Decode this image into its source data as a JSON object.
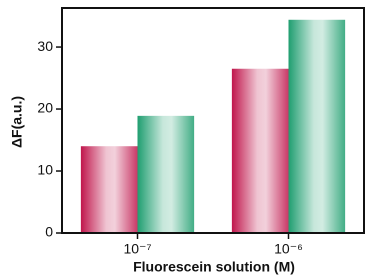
{
  "chart_data": {
    "type": "bar",
    "x_label": "Fluorescein solution (M)",
    "y_label": "ΔF(a.u.)",
    "categories": [
      "10⁻⁷",
      "10⁻⁶"
    ],
    "series": [
      {
        "color": "#c0164c",
        "values": [
          14.0,
          26.5
        ]
      },
      {
        "color": "#1f9e70",
        "values": [
          18.9,
          34.4
        ]
      }
    ],
    "ylim": [
      0,
      36.3
    ],
    "yticks": [
      0,
      10,
      20,
      30
    ]
  }
}
